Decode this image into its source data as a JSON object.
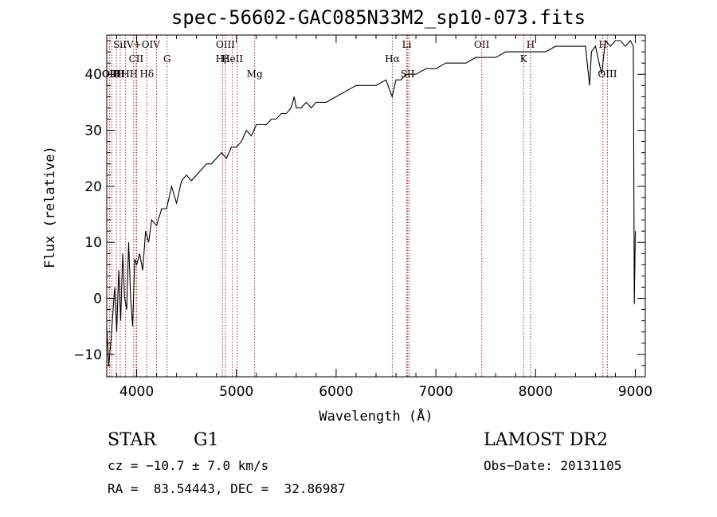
{
  "chart_data": {
    "type": "line",
    "title": "spec-56602-GAC085N33M2_sp10-073.fits",
    "xlabel": "Wavelength (Å)",
    "ylabel": "Flux (relative)",
    "xlim": [
      3700,
      9100
    ],
    "ylim": [
      -14,
      47
    ],
    "xticks": [
      4000,
      5000,
      6000,
      7000,
      8000,
      9000
    ],
    "yticks": [
      -10,
      0,
      10,
      20,
      30,
      40
    ],
    "series": [
      {
        "color": "#000000",
        "x": [
          3700,
          3720,
          3740,
          3760,
          3780,
          3800,
          3820,
          3840,
          3860,
          3880,
          3900,
          3920,
          3940,
          3960,
          3980,
          4000,
          4030,
          4060,
          4090,
          4120,
          4150,
          4200,
          4250,
          4300,
          4350,
          4400,
          4450,
          4500,
          4550,
          4600,
          4650,
          4700,
          4750,
          4800,
          4850,
          4900,
          4950,
          5000,
          5050,
          5100,
          5150,
          5200,
          5250,
          5300,
          5350,
          5400,
          5450,
          5500,
          5550,
          5580,
          5600,
          5650,
          5700,
          5750,
          5800,
          5900,
          6000,
          6100,
          6200,
          6300,
          6400,
          6500,
          6562,
          6600,
          6650,
          6700,
          6800,
          6900,
          7000,
          7100,
          7200,
          7300,
          7400,
          7500,
          7600,
          7700,
          7800,
          7900,
          8000,
          8100,
          8200,
          8300,
          8400,
          8450,
          8500,
          8542,
          8560,
          8600,
          8662,
          8700,
          8750,
          8800,
          8850,
          8900,
          8950,
          8980,
          8990,
          9000
        ],
        "values": [
          -5,
          -12,
          -8,
          -3,
          2,
          -6,
          5,
          -4,
          8,
          0,
          -2,
          10,
          0,
          -5,
          7,
          6,
          8,
          5,
          12,
          10,
          14,
          13,
          16,
          16,
          20,
          17,
          21,
          22,
          21,
          22,
          23,
          24,
          24,
          25,
          26,
          25,
          27,
          27,
          28,
          30,
          29,
          31,
          31,
          31,
          32,
          32,
          33,
          33,
          34,
          36,
          34,
          34,
          35,
          34,
          35,
          35,
          36,
          37,
          38,
          38,
          38,
          39,
          36,
          39,
          39,
          40,
          40,
          41,
          41,
          42,
          42,
          42,
          43,
          43,
          43,
          44,
          44,
          44,
          44,
          44,
          45,
          45,
          45,
          45,
          45,
          38,
          44,
          45,
          40,
          46,
          45,
          46,
          46,
          45,
          46,
          45,
          -1,
          12
        ]
      }
    ],
    "lines": [
      {
        "x": 3727,
        "label": "OII",
        "row": 2
      },
      {
        "x": 3750,
        "label": "OIII",
        "row": 2
      },
      {
        "x": 3797,
        "label": "H",
        "row": 2
      },
      {
        "x": 3835,
        "label": "H",
        "row": 2
      },
      {
        "x": 3889,
        "label": "H",
        "row": 2
      },
      {
        "x": 3970,
        "label": "H",
        "row": 2
      },
      {
        "x": 4102,
        "label": "Hδ",
        "row": 2
      },
      {
        "x": 4000,
        "label": "SiIV+OIV",
        "row": 0
      },
      {
        "x": 3995,
        "label": "CII",
        "row": 1
      },
      {
        "x": 4200,
        "label": "",
        "row": 0
      },
      {
        "x": 4305,
        "label": "G",
        "row": 1
      },
      {
        "x": 4861,
        "label": "Hβ",
        "row": 1
      },
      {
        "x": 4890,
        "label": "OIII",
        "row": 0
      },
      {
        "x": 4959,
        "label": "HeII",
        "row": 1
      },
      {
        "x": 5007,
        "label": "",
        "row": 0
      },
      {
        "x": 5183,
        "label": "Mg",
        "row": 2
      },
      {
        "x": 6563,
        "label": "Hα",
        "row": 1
      },
      {
        "x": 6708,
        "label": "Li",
        "row": 0
      },
      {
        "x": 6717,
        "label": "SII",
        "row": 2
      },
      {
        "x": 6731,
        "label": "",
        "row": 0
      },
      {
        "x": 7460,
        "label": "OII",
        "row": 0
      },
      {
        "x": 7880,
        "label": "K",
        "row": 1
      },
      {
        "x": 7950,
        "label": "H",
        "row": 0
      },
      {
        "x": 8675,
        "label": "H",
        "row": 0
      },
      {
        "x": 8720,
        "label": "OIII",
        "row": 2
      }
    ]
  },
  "info": {
    "class_label": "STAR",
    "subclass": "G1",
    "survey": "LAMOST DR2",
    "cz": "cz = −10.7 ± 7.0 km/s",
    "obs_date": "Obs−Date: 20131105",
    "coords": "RA =  83.54443, DEC =  32.86987"
  }
}
